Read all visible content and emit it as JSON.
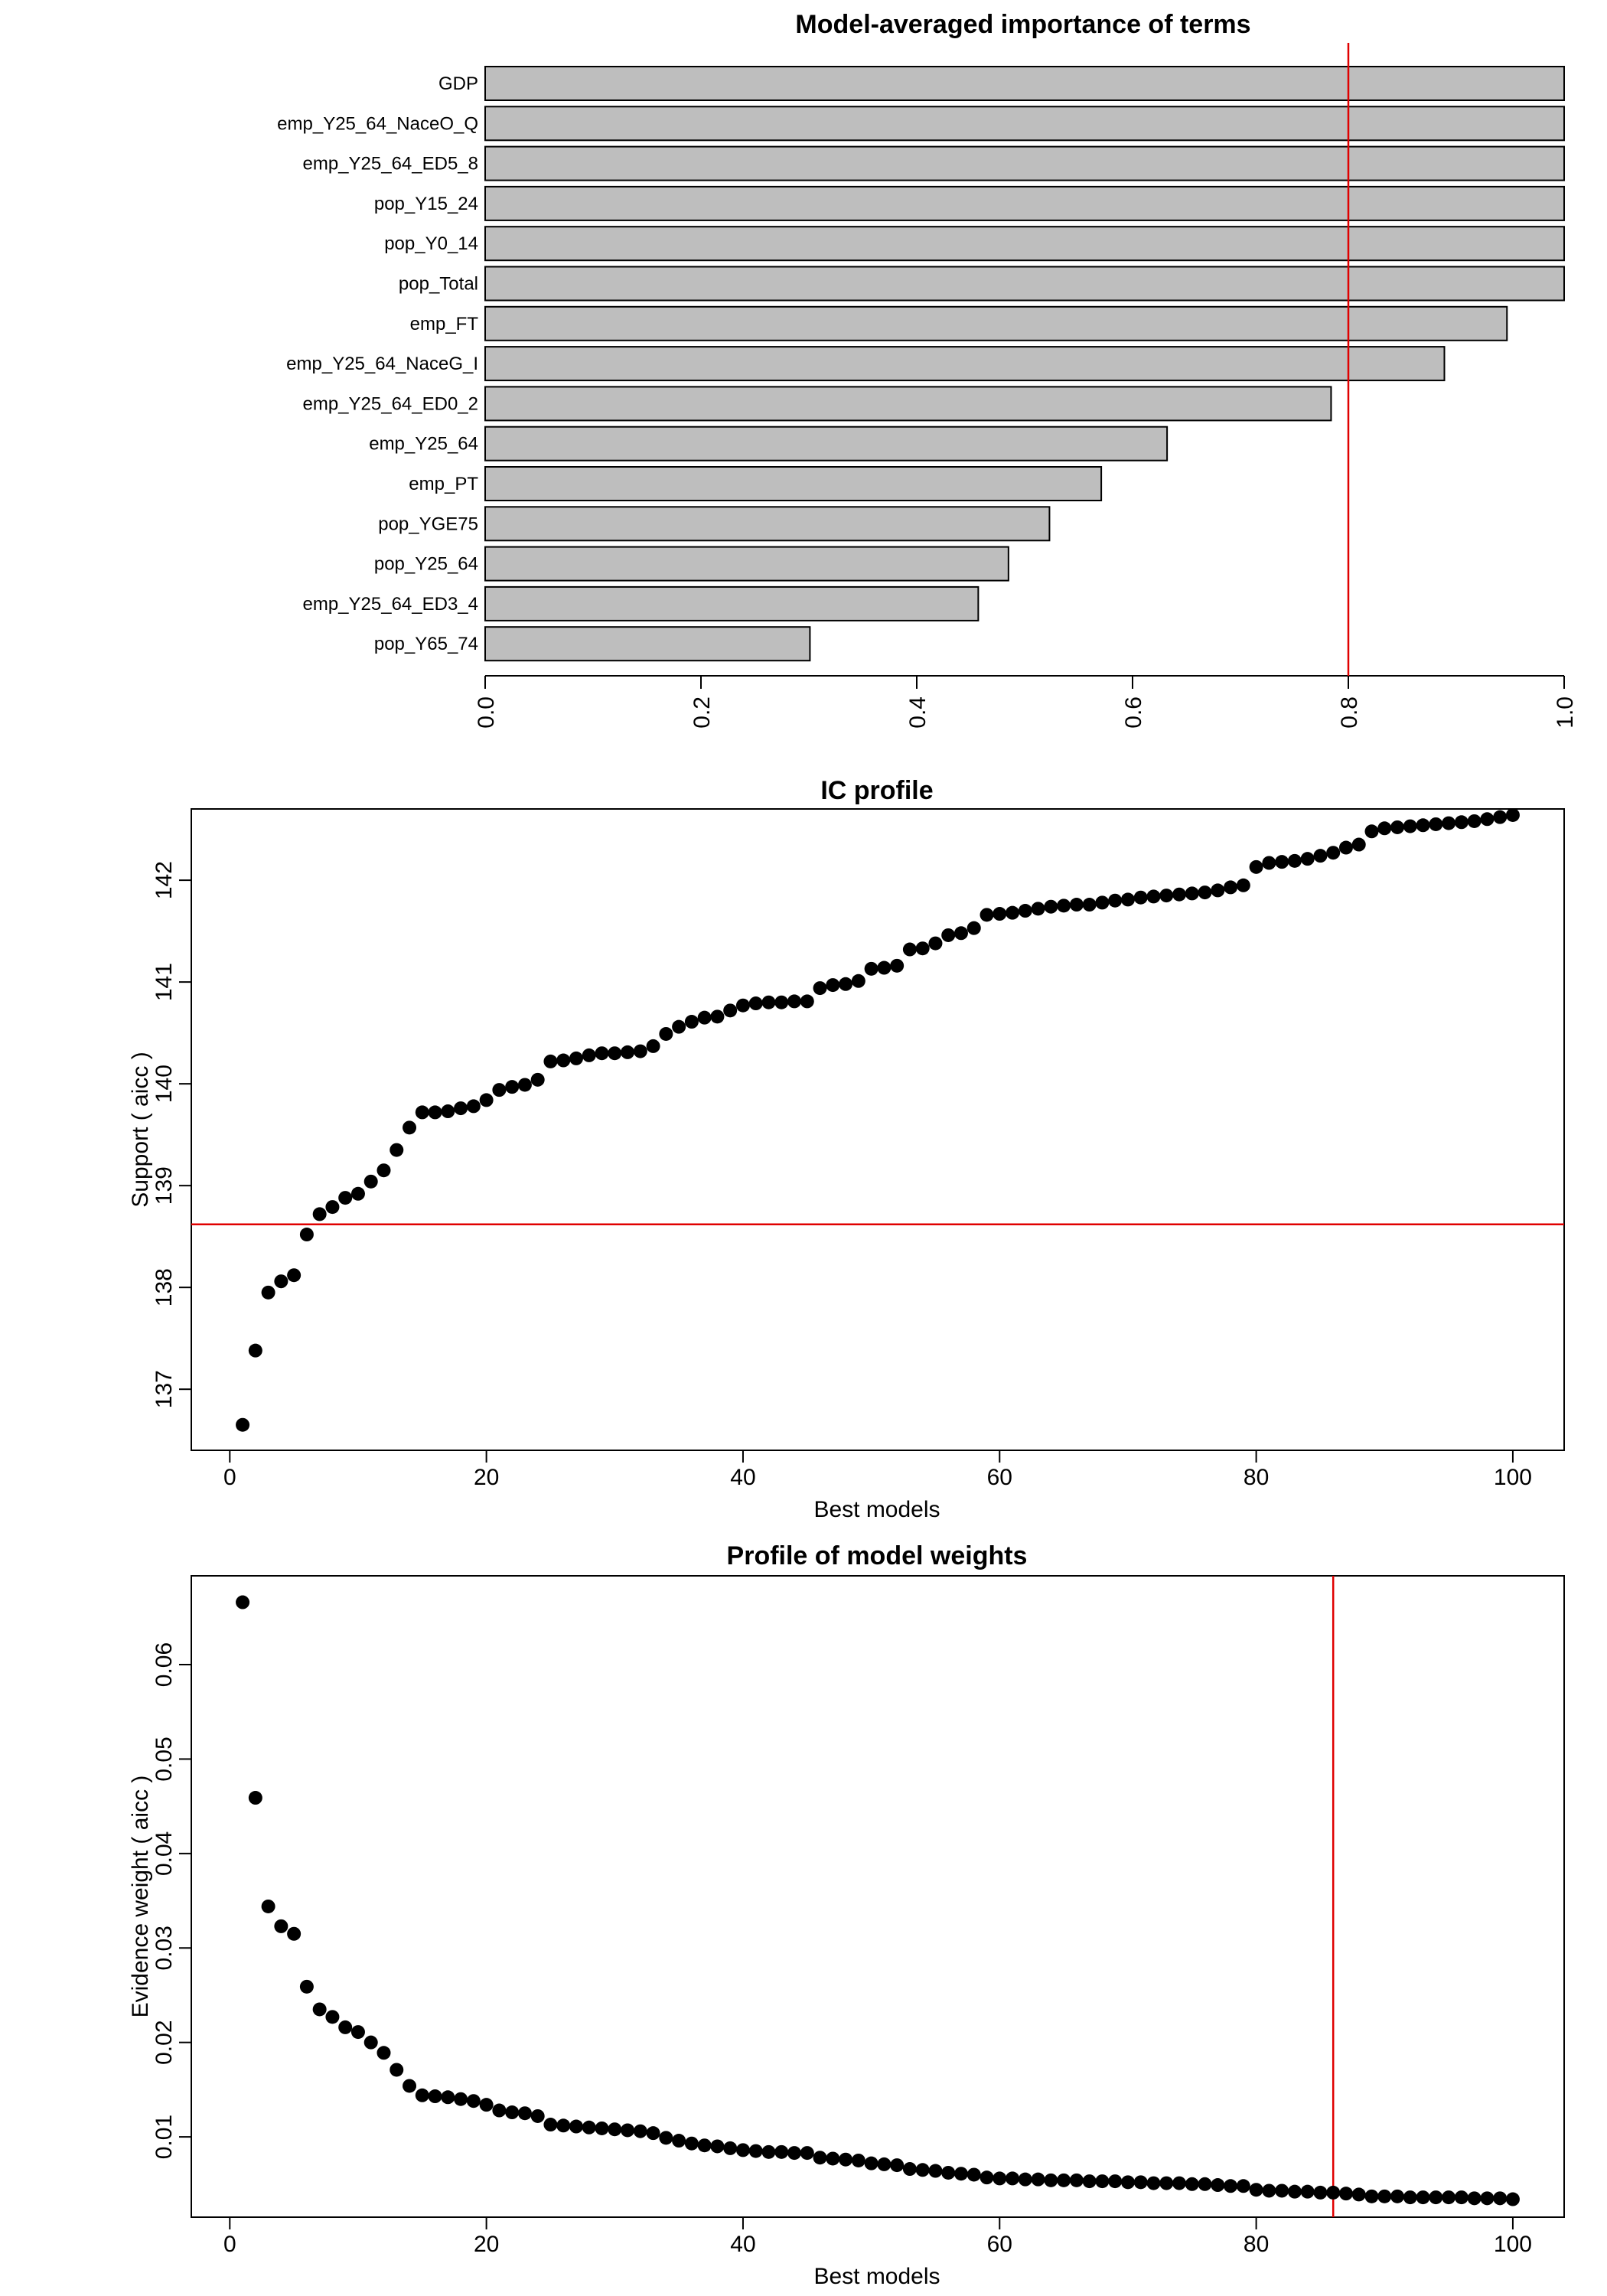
{
  "colors": {
    "bar_fill": "#bebebe",
    "ref_line": "#e00000",
    "point": "#000000"
  },
  "chart_data": [
    {
      "type": "bar",
      "orientation": "horizontal",
      "title": "Model-averaged importance of terms",
      "categories": [
        "GDP",
        "emp_Y25_64_NaceO_Q",
        "emp_Y25_64_ED5_8",
        "pop_Y15_24",
        "pop_Y0_14",
        "pop_Total",
        "emp_FT",
        "emp_Y25_64_NaceG_I",
        "emp_Y25_64_ED0_2",
        "emp_Y25_64",
        "emp_PT",
        "pop_YGE75",
        "pop_Y25_64",
        "emp_Y25_64_ED3_4",
        "pop_Y65_74"
      ],
      "values": [
        1.0,
        1.0,
        1.0,
        1.0,
        1.0,
        1.0,
        0.947,
        0.889,
        0.784,
        0.632,
        0.571,
        0.523,
        0.485,
        0.457,
        0.301
      ],
      "xlim": [
        0,
        1
      ],
      "xticks": [
        "0.0",
        "0.2",
        "0.4",
        "0.6",
        "0.8",
        "1.0"
      ],
      "reference_line_x": 0.8,
      "grid": false
    },
    {
      "type": "scatter",
      "title": "IC profile",
      "xlabel": "Best models",
      "ylabel": "Support ( aicc )",
      "xlim": [
        -3,
        104
      ],
      "ylim": [
        136.4,
        142.7
      ],
      "xticks": [
        "0",
        "20",
        "40",
        "60",
        "80",
        "100"
      ],
      "yticks": [
        "137",
        "138",
        "139",
        "140",
        "141",
        "142"
      ],
      "reference_line_y": 138.62,
      "grid": false,
      "y": [
        136.65,
        137.38,
        137.95,
        138.06,
        138.12,
        138.52,
        138.72,
        138.79,
        138.88,
        138.92,
        139.04,
        139.15,
        139.35,
        139.57,
        139.72,
        139.72,
        139.73,
        139.76,
        139.78,
        139.84,
        139.94,
        139.97,
        139.99,
        140.04,
        140.22,
        140.23,
        140.25,
        140.28,
        140.3,
        140.3,
        140.31,
        140.32,
        140.37,
        140.49,
        140.56,
        140.61,
        140.65,
        140.66,
        140.72,
        140.77,
        140.79,
        140.8,
        140.8,
        140.81,
        140.81,
        140.94,
        140.97,
        140.98,
        141.01,
        141.13,
        141.14,
        141.16,
        141.32,
        141.33,
        141.38,
        141.46,
        141.48,
        141.53,
        141.66,
        141.67,
        141.68,
        141.7,
        141.72,
        141.74,
        141.75,
        141.76,
        141.76,
        141.78,
        141.8,
        141.81,
        141.83,
        141.84,
        141.85,
        141.86,
        141.87,
        141.88,
        141.9,
        141.93,
        141.95,
        142.13,
        142.17,
        142.18,
        142.19,
        142.21,
        142.24,
        142.27,
        142.32,
        142.35,
        142.48,
        142.51,
        142.52,
        142.53,
        142.54,
        142.55,
        142.56,
        142.57,
        142.58,
        142.6,
        142.62,
        142.64
      ]
    },
    {
      "type": "scatter",
      "title": "Profile of model weights",
      "xlabel": "Best models",
      "ylabel": "Evidence weight ( aicc )",
      "xlim": [
        -3,
        104
      ],
      "ylim": [
        0.0015,
        0.0694
      ],
      "xticks": [
        "0",
        "20",
        "40",
        "60",
        "80",
        "100"
      ],
      "yticks": [
        "0.01",
        "0.02",
        "0.03",
        "0.04",
        "0.05",
        "0.06"
      ],
      "reference_line_x": 86,
      "grid": false,
      "y": [
        0.0666,
        0.0459,
        0.0344,
        0.0323,
        0.0315,
        0.0259,
        0.0235,
        0.0227,
        0.0216,
        0.0211,
        0.02,
        0.0189,
        0.0171,
        0.0154,
        0.0144,
        0.0143,
        0.0142,
        0.014,
        0.0138,
        0.0134,
        0.0128,
        0.0126,
        0.0125,
        0.0122,
        0.0113,
        0.0112,
        0.0111,
        0.011,
        0.0109,
        0.0108,
        0.0107,
        0.0106,
        0.0104,
        0.0099,
        0.0096,
        0.0093,
        0.0091,
        0.009,
        0.0088,
        0.0086,
        0.0085,
        0.0084,
        0.0084,
        0.0083,
        0.0083,
        0.0078,
        0.0077,
        0.0076,
        0.0075,
        0.0072,
        0.0071,
        0.007,
        0.0066,
        0.0065,
        0.0064,
        0.0062,
        0.0061,
        0.006,
        0.0057,
        0.0056,
        0.0056,
        0.0055,
        0.0055,
        0.0054,
        0.0054,
        0.0054,
        0.0053,
        0.0053,
        0.0053,
        0.0052,
        0.0052,
        0.0051,
        0.0051,
        0.0051,
        0.005,
        0.005,
        0.0049,
        0.0048,
        0.0048,
        0.0044,
        0.0043,
        0.0043,
        0.0042,
        0.0042,
        0.0041,
        0.0041,
        0.004,
        0.0039,
        0.0037,
        0.0037,
        0.0037,
        0.0036,
        0.0036,
        0.0036,
        0.0036,
        0.0036,
        0.0035,
        0.0035,
        0.0035,
        0.0034
      ]
    }
  ]
}
